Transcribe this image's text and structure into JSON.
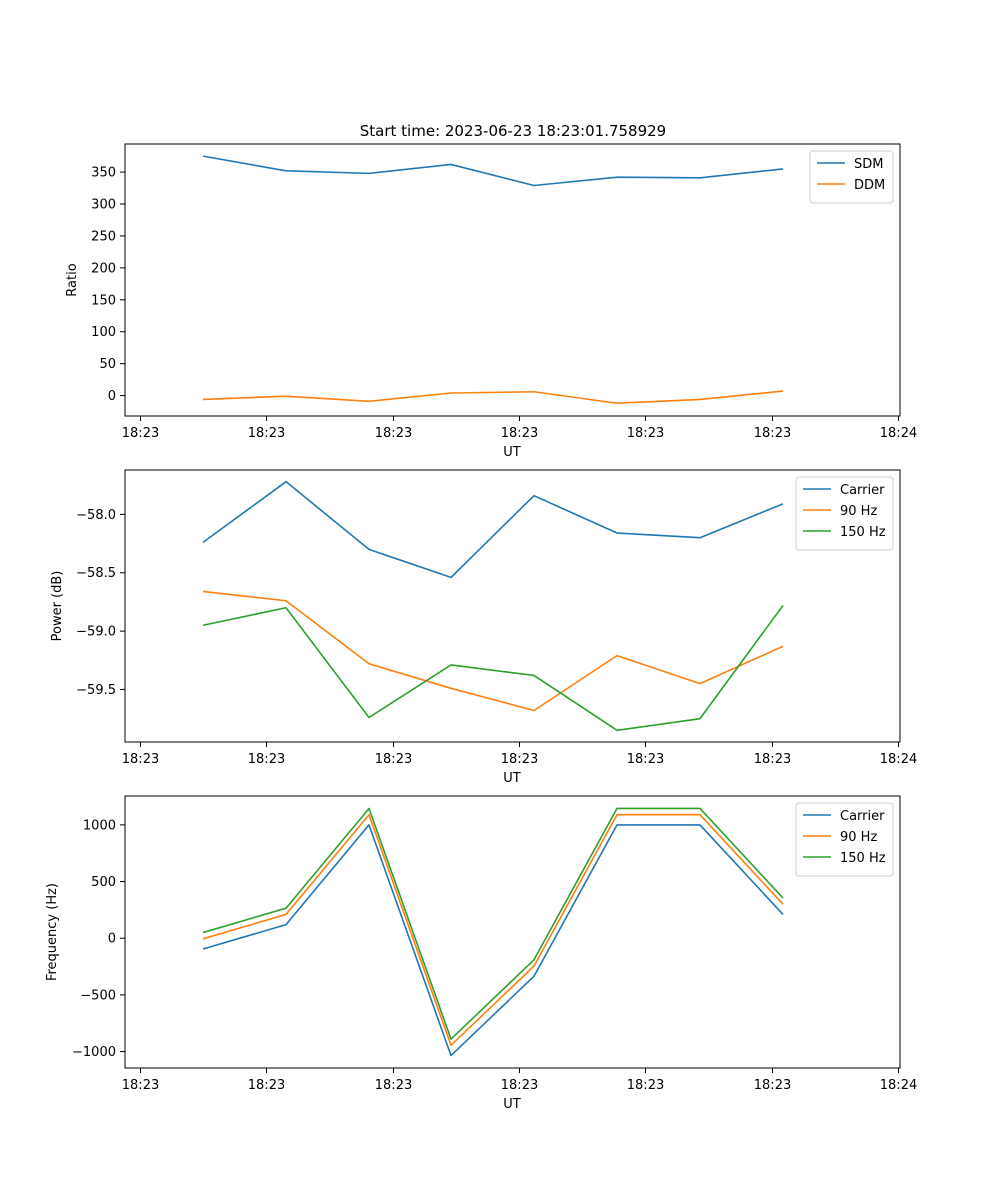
{
  "figure": {
    "title": "Start time: 2023-06-23 18:23:01.758929"
  },
  "chart_data": [
    {
      "type": "line",
      "title": "Start time: 2023-06-23 18:23:01.758929",
      "xlabel": "UT",
      "ylabel": "Ratio",
      "x_ticks": [
        "18:23",
        "18:23",
        "18:23",
        "18:23",
        "18:23",
        "18:23",
        "18:23",
        "18:24"
      ],
      "ylim": [
        -32,
        394
      ],
      "y_ticks": [
        0,
        50,
        100,
        150,
        200,
        250,
        300,
        350
      ],
      "y_tick_labels": [
        "0",
        "50",
        "100",
        "150",
        "200",
        "250",
        "300",
        "350"
      ],
      "legend_position": "upper right",
      "series": [
        {
          "name": "SDM",
          "color": "#1f77b4",
          "values": [
            375,
            352,
            348,
            362,
            329,
            342,
            341,
            355
          ]
        },
        {
          "name": "DDM",
          "color": "#ff7f0e",
          "values": [
            -6,
            -1,
            -9,
            4,
            6,
            -12,
            -6,
            7
          ]
        }
      ]
    },
    {
      "type": "line",
      "xlabel": "UT",
      "ylabel": "Power (dB)",
      "x_ticks": [
        "18:23",
        "18:23",
        "18:23",
        "18:23",
        "18:23",
        "18:23",
        "18:23",
        "18:24"
      ],
      "ylim": [
        -59.95,
        -57.62
      ],
      "y_ticks": [
        -58.0,
        -58.5,
        -59.0,
        -59.5
      ],
      "y_tick_labels": [
        "−58.0",
        "−58.5",
        "−59.0",
        "−59.5"
      ],
      "legend_position": "upper right",
      "series": [
        {
          "name": "Carrier",
          "color": "#1f77b4",
          "values": [
            -58.24,
            -57.72,
            -58.3,
            -58.54,
            -57.84,
            -58.16,
            -58.2,
            -57.91
          ]
        },
        {
          "name": "90 Hz",
          "color": "#ff7f0e",
          "values": [
            -58.66,
            -58.74,
            -59.28,
            -59.49,
            -59.68,
            -59.21,
            -59.45,
            -59.13
          ]
        },
        {
          "name": "150 Hz",
          "color": "#2ca02c",
          "values": [
            -58.95,
            -58.8,
            -59.74,
            -59.29,
            -59.38,
            -59.85,
            -59.75,
            -58.78
          ]
        }
      ]
    },
    {
      "type": "line",
      "xlabel": "UT",
      "ylabel": "Frequency (Hz)",
      "x_ticks": [
        "18:23",
        "18:23",
        "18:23",
        "18:23",
        "18:23",
        "18:23",
        "18:23",
        "18:24"
      ],
      "ylim": [
        -1145,
        1255
      ],
      "y_ticks": [
        1000,
        500,
        0,
        -500,
        -1000
      ],
      "y_tick_labels": [
        "1000",
        "500",
        "0",
        "−500",
        "−1000"
      ],
      "legend_position": "upper right",
      "series": [
        {
          "name": "Carrier",
          "color": "#1f77b4",
          "values": [
            -95,
            120,
            1000,
            -1035,
            -335,
            1000,
            1000,
            210
          ]
        },
        {
          "name": "90 Hz",
          "color": "#ff7f0e",
          "values": [
            -5,
            210,
            1090,
            -945,
            -245,
            1090,
            1090,
            300
          ]
        },
        {
          "name": "150 Hz",
          "color": "#2ca02c",
          "values": [
            50,
            265,
            1145,
            -890,
            -190,
            1145,
            1145,
            355
          ]
        }
      ]
    }
  ]
}
